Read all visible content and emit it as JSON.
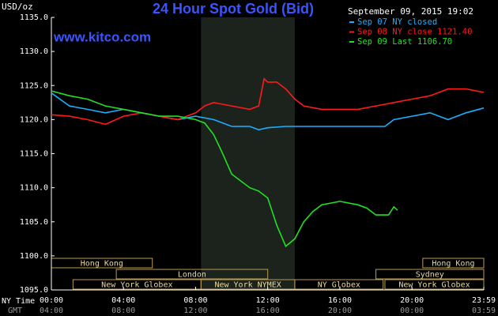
{
  "chart_data": {
    "type": "line",
    "title": "24 Hour Spot Gold (Bid)",
    "website": "www.kitco.com",
    "y_label": "USD/oz",
    "timestamp": "September 09, 2015 19:02",
    "x_row_labels": [
      "NY Time",
      "GMT"
    ],
    "xlim": [
      0,
      23.983
    ],
    "xticks": [
      {
        "value": 0,
        "label": "00:00"
      },
      {
        "value": 4,
        "label": "04:00"
      },
      {
        "value": 8,
        "label": "08:00"
      },
      {
        "value": 12,
        "label": "12:00"
      },
      {
        "value": 16,
        "label": "16:00"
      },
      {
        "value": 20,
        "label": "20:00"
      },
      {
        "value": 23.983,
        "label": "23:59"
      }
    ],
    "gmt_tick_labels": [
      "04:00",
      "08:00",
      "12:00",
      "16:00",
      "20:00",
      "00:00",
      "03:59"
    ],
    "ylim": [
      1095,
      1135
    ],
    "yticks": [
      {
        "value": 1095,
        "label": "1095.0"
      },
      {
        "value": 1100,
        "label": "1100.0"
      },
      {
        "value": 1105,
        "label": "1105.0"
      },
      {
        "value": 1110,
        "label": "1110.0"
      },
      {
        "value": 1115,
        "label": "1115.0"
      },
      {
        "value": 1120,
        "label": "1120.0"
      },
      {
        "value": 1125,
        "label": "1125.0"
      },
      {
        "value": 1130,
        "label": "1130.0"
      },
      {
        "value": 1135,
        "label": "1135.0"
      }
    ],
    "shaded_range": [
      8.3,
      13.5
    ],
    "session_rows": [
      [
        {
          "label": "Hong Kong",
          "start": 0,
          "end": 5.6
        },
        {
          "label": "Hong Kong",
          "start": 20.6,
          "end": 23.983
        }
      ],
      [
        {
          "label": "London",
          "start": 3.6,
          "end": 12
        },
        {
          "label": "Sydney",
          "start": 18,
          "end": 23.983
        }
      ],
      [
        {
          "label": "New York Globex",
          "start": 1.2,
          "end": 8.3
        },
        {
          "label": "New York NYMEX",
          "start": 8.3,
          "end": 13.5
        },
        {
          "label": "NY Globex",
          "start": 13.5,
          "end": 18.4
        },
        {
          "label": "New York Globex",
          "start": 18.5,
          "end": 23.983
        }
      ]
    ],
    "series": [
      {
        "name": "Sep 07 NY closed",
        "color": "#1ab0ff",
        "x": [
          0,
          1,
          2,
          3,
          4,
          5,
          6,
          7,
          8,
          9,
          10,
          11,
          11.5,
          12,
          13,
          14,
          15,
          16,
          17,
          18.5,
          19,
          20,
          21,
          22,
          23,
          23.983
        ],
        "values": [
          1123.9,
          1122,
          1121.5,
          1121,
          1121.5,
          1121,
          1120.5,
          1120,
          1120.5,
          1120,
          1119,
          1119,
          1118.5,
          1118.8,
          1119,
          1119,
          1119,
          1119,
          1119,
          1119,
          1120,
          1120.5,
          1121,
          1120,
          1121,
          1121.7
        ]
      },
      {
        "name": "Sep 08 NY close 1121.40",
        "color": "#ff1a1a",
        "x": [
          0,
          1,
          2,
          3,
          4,
          5,
          6,
          7,
          8,
          8.5,
          9,
          10,
          11,
          11.5,
          11.8,
          12,
          12.5,
          13,
          13.5,
          14,
          15,
          16,
          17,
          18,
          19,
          20,
          21,
          22,
          23,
          23.983
        ],
        "values": [
          1120.7,
          1120.5,
          1120,
          1119.3,
          1120.5,
          1121,
          1120.5,
          1120,
          1121,
          1122,
          1122.5,
          1122,
          1121.5,
          1122,
          1126,
          1125.5,
          1125.5,
          1124.5,
          1123,
          1122,
          1121.5,
          1121.5,
          1121.5,
          1122,
          1122.5,
          1123,
          1123.5,
          1124.5,
          1124.5,
          1124
        ]
      },
      {
        "name": "Sep 09 Last 1106.70",
        "color": "#22e022",
        "x": [
          0,
          1,
          2,
          3,
          4,
          5,
          6,
          7,
          8,
          8.5,
          9,
          9.5,
          10,
          10.5,
          11,
          11.5,
          12,
          12.5,
          13,
          13.5,
          14,
          14.5,
          15,
          16,
          17,
          17.5,
          18,
          18.7,
          19,
          19.2
        ],
        "values": [
          1124.2,
          1123.5,
          1123,
          1122,
          1121.5,
          1121,
          1120.5,
          1120.5,
          1120,
          1119.5,
          1117.8,
          1115,
          1112,
          1111,
          1110,
          1109.5,
          1108.5,
          1104.5,
          1101.4,
          1102.5,
          1105,
          1106.5,
          1107.5,
          1108,
          1107.5,
          1107,
          1106,
          1106,
          1107.2,
          1106.7
        ]
      }
    ]
  }
}
